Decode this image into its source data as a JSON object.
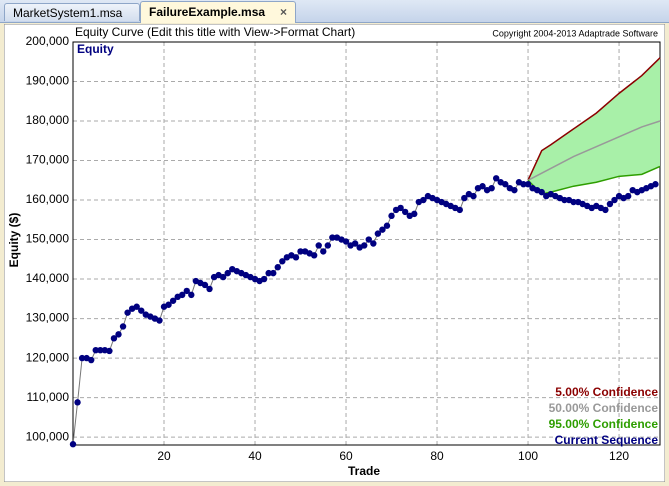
{
  "tabs": [
    "MarketSystem1.msa",
    "FailureExample.msa"
  ],
  "chart_data": {
    "type": "line",
    "title": "Equity Curve (Edit this title with View->Format Chart)",
    "copyright": "Copyright 2004-2013 Adaptrade Software",
    "panel_label": "Equity",
    "x_label": "Trade",
    "y_label": "Equity ($)",
    "xlim": [
      0,
      129
    ],
    "ylim": [
      98000,
      200000
    ],
    "xticks": [
      20,
      40,
      60,
      80,
      100,
      120
    ],
    "yticks": [
      {
        "value": 100000,
        "label": "100,000"
      },
      {
        "value": 110000,
        "label": "110,000"
      },
      {
        "value": 120000,
        "label": "120,000"
      },
      {
        "value": 130000,
        "label": "130,000"
      },
      {
        "value": 140000,
        "label": "140,000"
      },
      {
        "value": 150000,
        "label": "150,000"
      },
      {
        "value": 160000,
        "label": "160,000"
      },
      {
        "value": 170000,
        "label": "170,000"
      },
      {
        "value": 180000,
        "label": "180,000"
      },
      {
        "value": 190000,
        "label": "190,000"
      },
      {
        "value": 200000,
        "label": "200,000"
      }
    ],
    "grid": true,
    "legend": "bottom-right",
    "band_color": "#a8f0a8",
    "series": [
      {
        "name": "5.00% Confidence",
        "color": "#8b0000",
        "x": [
          100,
          103,
          105,
          110,
          115,
          120,
          125,
          129
        ],
        "values": [
          165000,
          172500,
          174000,
          178000,
          182000,
          187000,
          191500,
          196000
        ]
      },
      {
        "name": "50.00% Confidence",
        "color": "#999999",
        "x": [
          100,
          105,
          110,
          115,
          120,
          125,
          129
        ],
        "values": [
          165000,
          168000,
          171000,
          173500,
          176000,
          178500,
          180000
        ]
      },
      {
        "name": "95.00% Confidence",
        "color": "#2e9e00",
        "x": [
          100,
          103,
          105,
          110,
          115,
          120,
          125,
          128,
          129
        ],
        "values": [
          165000,
          161500,
          162000,
          163500,
          164500,
          166000,
          166500,
          168000,
          168500
        ]
      },
      {
        "name": "Current Sequence",
        "color": "#000080",
        "markers": true,
        "x": [
          0,
          1,
          2,
          3,
          4,
          5,
          6,
          7,
          8,
          9,
          10,
          11,
          12,
          13,
          14,
          15,
          16,
          17,
          18,
          19,
          20,
          21,
          22,
          23,
          24,
          25,
          26,
          27,
          28,
          29,
          30,
          31,
          32,
          33,
          34,
          35,
          36,
          37,
          38,
          39,
          40,
          41,
          42,
          43,
          44,
          45,
          46,
          47,
          48,
          49,
          50,
          51,
          52,
          53,
          54,
          55,
          56,
          57,
          58,
          59,
          60,
          61,
          62,
          63,
          64,
          65,
          66,
          67,
          68,
          69,
          70,
          71,
          72,
          73,
          74,
          75,
          76,
          77,
          78,
          79,
          80,
          81,
          82,
          83,
          84,
          85,
          86,
          87,
          88,
          89,
          90,
          91,
          92,
          93,
          94,
          95,
          96,
          97,
          98,
          99,
          100,
          101,
          102,
          103,
          104,
          105,
          106,
          107,
          108,
          109,
          110,
          111,
          112,
          113,
          114,
          115,
          116,
          117,
          118,
          119,
          120,
          121,
          122,
          123,
          124,
          125,
          126,
          127,
          128
        ],
        "values": [
          98200,
          108800,
          120000,
          120000,
          119500,
          122000,
          122000,
          122000,
          121800,
          125000,
          126000,
          128000,
          131500,
          132500,
          133000,
          132000,
          131000,
          130500,
          130000,
          129500,
          133000,
          133500,
          134500,
          135500,
          136000,
          137000,
          136000,
          139500,
          139000,
          138500,
          137500,
          140500,
          141000,
          140500,
          141500,
          142500,
          142000,
          141500,
          141000,
          140500,
          140000,
          139500,
          140000,
          141500,
          141500,
          143000,
          144500,
          145500,
          146000,
          145500,
          147000,
          147000,
          146500,
          146000,
          148500,
          147000,
          148500,
          150500,
          150500,
          150000,
          149500,
          148500,
          149000,
          148000,
          148500,
          150000,
          149000,
          151500,
          152500,
          153500,
          156000,
          157500,
          158000,
          157000,
          156000,
          156500,
          159500,
          160000,
          161000,
          160500,
          160000,
          159500,
          159000,
          158500,
          158000,
          157500,
          160500,
          161500,
          161000,
          163000,
          163500,
          162500,
          163000,
          165500,
          164500,
          164000,
          163000,
          162500,
          164500,
          164000,
          164000,
          163000,
          162500,
          162000,
          161000,
          161500,
          161000,
          160500,
          160000,
          160000,
          159500,
          159500,
          159000,
          158500,
          158000,
          158500,
          158000,
          157500,
          159000,
          160000,
          161000,
          160500,
          161000,
          162500,
          162000,
          162500,
          163000,
          163500,
          164000
        ]
      }
    ]
  }
}
